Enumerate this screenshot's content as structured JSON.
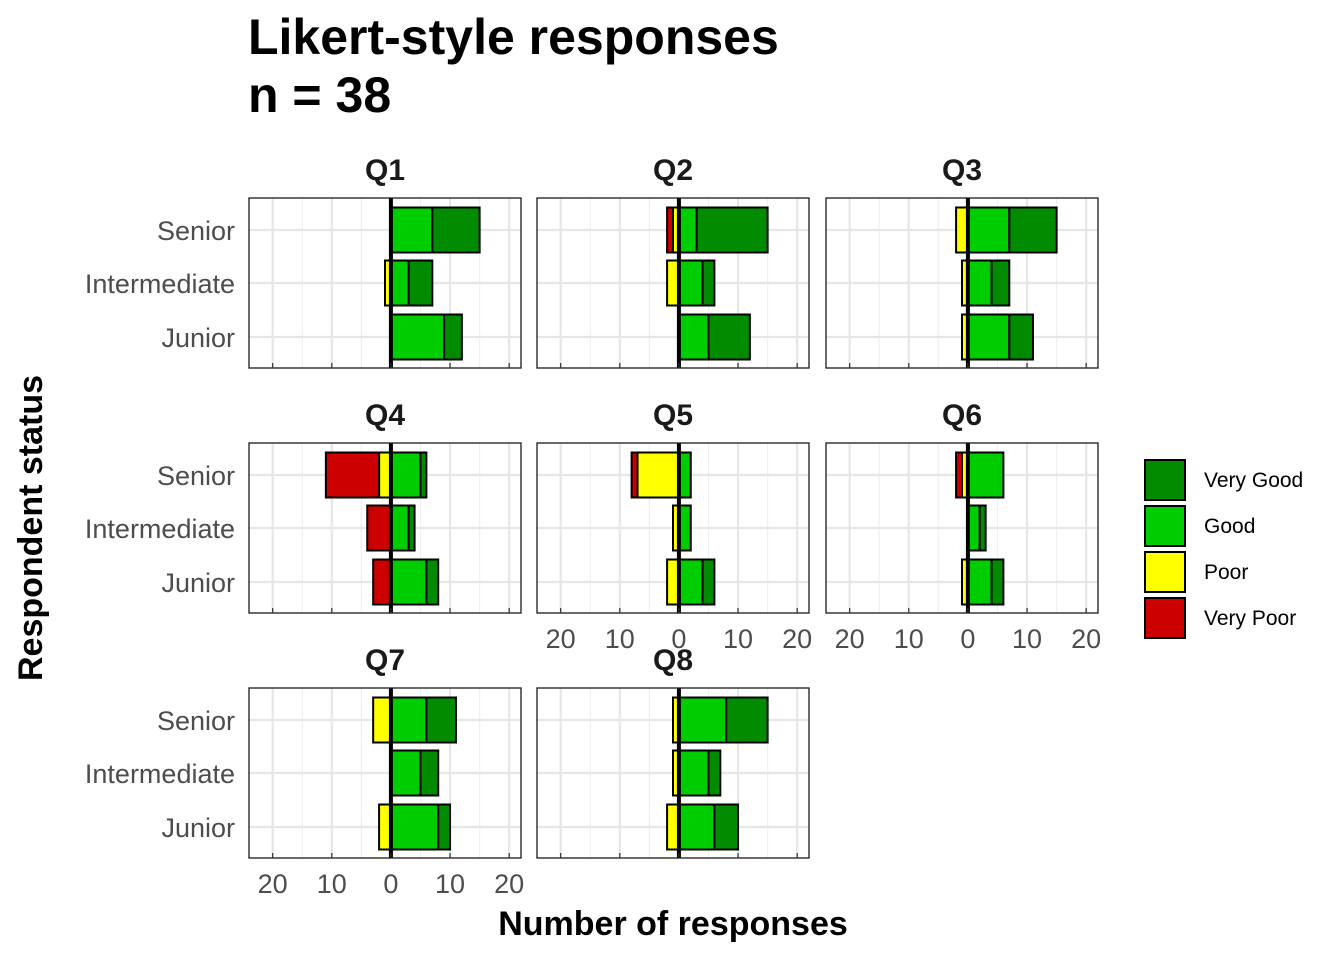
{
  "chart_data": {
    "type": "bar",
    "orientation": "horizontal-diverging-stacked",
    "title": "Likert-style responses\nn = 38",
    "xlabel": "Number of responses",
    "ylabel": "Respondent status",
    "xlim": [
      -24,
      22
    ],
    "x_ticks": [
      -20,
      -10,
      0,
      10,
      20
    ],
    "x_tick_labels": [
      "20",
      "10",
      "0",
      "10",
      "20"
    ],
    "categories": [
      "Senior",
      "Intermediate",
      "Junior"
    ],
    "levels": [
      "Very Poor",
      "Poor",
      "Good",
      "Very Good"
    ],
    "legend": {
      "position": "right",
      "entries": [
        {
          "label": "Very Good",
          "color": "#008B00"
        },
        {
          "label": "Good",
          "color": "#00CD00"
        },
        {
          "label": "Poor",
          "color": "#FFFF00"
        },
        {
          "label": "Very Poor",
          "color": "#CD0000"
        }
      ]
    },
    "grid": true,
    "panels": [
      {
        "label": "Q1",
        "counts": {
          "Senior": {
            "Very Poor": 0,
            "Poor": 0,
            "Good": 7,
            "Very Good": 8
          },
          "Intermediate": {
            "Very Poor": 0,
            "Poor": 1,
            "Good": 3,
            "Very Good": 4
          },
          "Junior": {
            "Very Poor": 0,
            "Poor": 0,
            "Good": 9,
            "Very Good": 3
          }
        }
      },
      {
        "label": "Q2",
        "counts": {
          "Senior": {
            "Very Poor": 1,
            "Poor": 1,
            "Good": 3,
            "Very Good": 12
          },
          "Intermediate": {
            "Very Poor": 0,
            "Poor": 2,
            "Good": 4,
            "Very Good": 2
          },
          "Junior": {
            "Very Poor": 0,
            "Poor": 0,
            "Good": 5,
            "Very Good": 7
          }
        }
      },
      {
        "label": "Q3",
        "counts": {
          "Senior": {
            "Very Poor": 0,
            "Poor": 2,
            "Good": 7,
            "Very Good": 8
          },
          "Intermediate": {
            "Very Poor": 0,
            "Poor": 1,
            "Good": 4,
            "Very Good": 3
          },
          "Junior": {
            "Very Poor": 0,
            "Poor": 1,
            "Good": 7,
            "Very Good": 4
          }
        }
      },
      {
        "label": "Q4",
        "counts": {
          "Senior": {
            "Very Poor": 9,
            "Poor": 2,
            "Good": 5,
            "Very Good": 1
          },
          "Intermediate": {
            "Very Poor": 4,
            "Poor": 0,
            "Good": 3,
            "Very Good": 1
          },
          "Junior": {
            "Very Poor": 3,
            "Poor": 0,
            "Good": 6,
            "Very Good": 2
          }
        }
      },
      {
        "label": "Q5",
        "counts": {
          "Senior": {
            "Very Poor": 1,
            "Poor": 7,
            "Good": 2,
            "Very Good": 0
          },
          "Intermediate": {
            "Very Poor": 0,
            "Poor": 1,
            "Good": 2,
            "Very Good": 0
          },
          "Junior": {
            "Very Poor": 0,
            "Poor": 2,
            "Good": 4,
            "Very Good": 2
          }
        }
      },
      {
        "label": "Q6",
        "counts": {
          "Senior": {
            "Very Poor": 1,
            "Poor": 1,
            "Good": 6,
            "Very Good": 0
          },
          "Intermediate": {
            "Very Poor": 0,
            "Poor": 0,
            "Good": 2,
            "Very Good": 1
          },
          "Junior": {
            "Very Poor": 0,
            "Poor": 1,
            "Good": 4,
            "Very Good": 2
          }
        }
      },
      {
        "label": "Q7",
        "counts": {
          "Senior": {
            "Very Poor": 0,
            "Poor": 3,
            "Good": 6,
            "Very Good": 5
          },
          "Intermediate": {
            "Very Poor": 0,
            "Poor": 0,
            "Good": 5,
            "Very Good": 3
          },
          "Junior": {
            "Very Poor": 0,
            "Poor": 2,
            "Good": 8,
            "Very Good": 2
          }
        }
      },
      {
        "label": "Q8",
        "counts": {
          "Senior": {
            "Very Poor": 0,
            "Poor": 1,
            "Good": 8,
            "Very Good": 7
          },
          "Intermediate": {
            "Very Poor": 0,
            "Poor": 1,
            "Good": 5,
            "Very Good": 2
          },
          "Junior": {
            "Very Poor": 0,
            "Poor": 2,
            "Good": 6,
            "Very Good": 4
          }
        }
      }
    ]
  }
}
